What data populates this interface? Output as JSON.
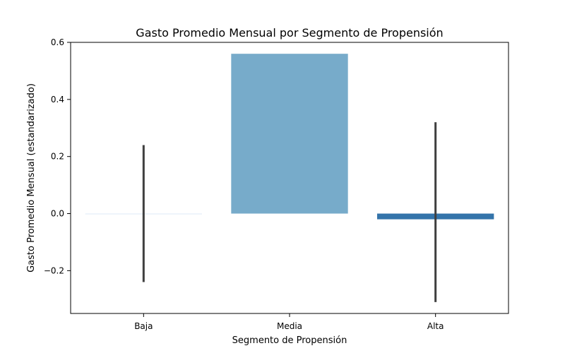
{
  "chart_data": {
    "type": "bar",
    "title": "Gasto Promedio Mensual por Segmento de Propensión",
    "xlabel": "Segmento de Propensión",
    "ylabel": "Gasto Promedio Mensual (estandarizado)",
    "categories": [
      "Baja",
      "Media",
      "Alta"
    ],
    "values": [
      0.0,
      0.56,
      -0.02
    ],
    "error_bars": [
      {
        "low": -0.24,
        "high": 0.24
      },
      null,
      {
        "low": -0.31,
        "high": 0.32
      }
    ],
    "ylim": [
      -0.35,
      0.6
    ],
    "yticks": [
      -0.2,
      0.0,
      0.2,
      0.4,
      0.6
    ],
    "ytick_labels": [
      "−0.2",
      "0.0",
      "0.2",
      "0.4",
      "0.6"
    ],
    "colors": [
      "#deebf7",
      "#77abca",
      "#3474aa"
    ],
    "error_color": "#3f3f3f",
    "grid": false,
    "legend": "none"
  }
}
